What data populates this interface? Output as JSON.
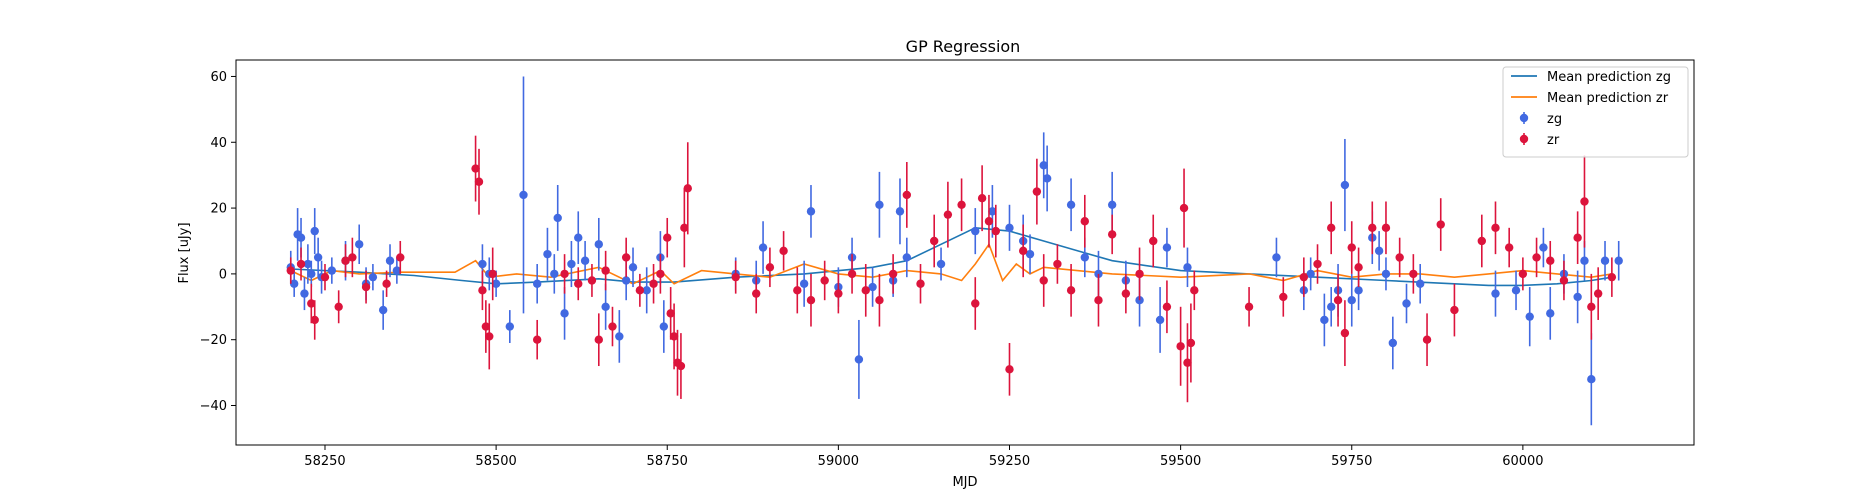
{
  "chart_data": {
    "type": "scatter",
    "title": "GP Regression",
    "xlabel": "MJD",
    "ylabel": "Flux [uJy]",
    "xlim": [
      58120,
      60250
    ],
    "ylim": [
      -52,
      65
    ],
    "xticks": [
      58250,
      58500,
      58750,
      59000,
      59250,
      59500,
      59750,
      60000
    ],
    "yticks": [
      -40,
      -20,
      0,
      20,
      40,
      60
    ],
    "legend_position": "top-right",
    "colors": {
      "zg": "#4169e1",
      "zr": "#dc143c",
      "mean_zg": "#1f77b4",
      "mean_zr": "#ff7f0e"
    },
    "mean_prediction": [
      {
        "name": "Mean prediction zg",
        "color": "#1f77b4",
        "x": [
          58200,
          58300,
          58380,
          58450,
          58500,
          58560,
          58650,
          58700,
          58760,
          58850,
          58950,
          59050,
          59100,
          59150,
          59200,
          59250,
          59300,
          59350,
          59400,
          59500,
          59600,
          59700,
          59800,
          59900,
          59950,
          60000,
          60050,
          60100,
          60130
        ],
        "y": [
          1.5,
          0.5,
          -0.5,
          -2,
          -3,
          -2.5,
          -1.5,
          -2.5,
          -2.5,
          -1,
          0,
          2,
          4,
          9,
          14,
          13,
          10,
          7,
          4,
          1,
          0,
          -1,
          -2,
          -3,
          -3.5,
          -3.5,
          -3,
          -2,
          -1
        ]
      },
      {
        "name": "Mean prediction zr",
        "color": "#ff7f0e",
        "x": [
          58200,
          58230,
          58260,
          58300,
          58360,
          58440,
          58470,
          58490,
          58530,
          58580,
          58650,
          58700,
          58740,
          58760,
          58800,
          58850,
          58900,
          58950,
          59000,
          59050,
          59100,
          59150,
          59180,
          59200,
          59220,
          59240,
          59260,
          59280,
          59300,
          59400,
          59500,
          59600,
          59650,
          59700,
          59750,
          59800,
          59850,
          59900,
          59950,
          60000,
          60050,
          60100,
          60130
        ],
        "y": [
          1,
          -2,
          1,
          0,
          0.5,
          0.5,
          4,
          -1,
          0,
          -1,
          2,
          -3,
          1,
          -3,
          1,
          0,
          -1,
          3,
          0,
          -1,
          1,
          0,
          -2,
          3,
          9,
          -2,
          3,
          0,
          2,
          0,
          -1,
          0,
          -2,
          1,
          -1,
          0,
          0,
          -1,
          0,
          1,
          0,
          -1,
          0
        ]
      }
    ],
    "series": [
      {
        "name": "zg",
        "color": "#4169e1",
        "points": [
          [
            58200,
            2,
            5
          ],
          [
            58205,
            -3,
            4
          ],
          [
            58210,
            12,
            8
          ],
          [
            58215,
            11,
            6
          ],
          [
            58220,
            -6,
            5
          ],
          [
            58225,
            3,
            6
          ],
          [
            58230,
            0,
            4
          ],
          [
            58235,
            13,
            7
          ],
          [
            58240,
            5,
            6
          ],
          [
            58245,
            -1,
            5
          ],
          [
            58260,
            1,
            4
          ],
          [
            58280,
            4,
            6
          ],
          [
            58300,
            9,
            6
          ],
          [
            58310,
            -3,
            5
          ],
          [
            58320,
            -1,
            4
          ],
          [
            58335,
            -11,
            6
          ],
          [
            58345,
            4,
            5
          ],
          [
            58355,
            1,
            4
          ],
          [
            58480,
            3,
            6
          ],
          [
            58490,
            0,
            5
          ],
          [
            58500,
            -3,
            4
          ],
          [
            58520,
            -16,
            5
          ],
          [
            58540,
            24,
            36
          ],
          [
            58560,
            -3,
            6
          ],
          [
            58575,
            6,
            8
          ],
          [
            58585,
            0,
            6
          ],
          [
            58590,
            17,
            10
          ],
          [
            58600,
            -12,
            8
          ],
          [
            58610,
            3,
            7
          ],
          [
            58620,
            11,
            8
          ],
          [
            58630,
            4,
            6
          ],
          [
            58650,
            9,
            8
          ],
          [
            58660,
            -10,
            7
          ],
          [
            58680,
            -19,
            8
          ],
          [
            58690,
            -2,
            6
          ],
          [
            58700,
            2,
            6
          ],
          [
            58720,
            -5,
            7
          ],
          [
            58740,
            5,
            8
          ],
          [
            58745,
            -16,
            8
          ],
          [
            58850,
            0,
            5
          ],
          [
            58880,
            -2,
            6
          ],
          [
            58890,
            8,
            8
          ],
          [
            58950,
            -3,
            7
          ],
          [
            58960,
            19,
            8
          ],
          [
            59000,
            -4,
            6
          ],
          [
            59020,
            5,
            6
          ],
          [
            59030,
            -26,
            12
          ],
          [
            59050,
            -4,
            6
          ],
          [
            59060,
            21,
            10
          ],
          [
            59080,
            -2,
            5
          ],
          [
            59090,
            19,
            10
          ],
          [
            59100,
            5,
            6
          ],
          [
            59150,
            3,
            5
          ],
          [
            59200,
            13,
            7
          ],
          [
            59225,
            19,
            8
          ],
          [
            59250,
            14,
            7
          ],
          [
            59270,
            10,
            8
          ],
          [
            59280,
            6,
            6
          ],
          [
            59300,
            33,
            10
          ],
          [
            59305,
            29,
            10
          ],
          [
            59340,
            21,
            8
          ],
          [
            59360,
            5,
            6
          ],
          [
            59380,
            0,
            7
          ],
          [
            59400,
            21,
            10
          ],
          [
            59420,
            -2,
            6
          ],
          [
            59440,
            -8,
            8
          ],
          [
            59470,
            -14,
            10
          ],
          [
            59480,
            8,
            6
          ],
          [
            59510,
            2,
            6
          ],
          [
            59640,
            5,
            6
          ],
          [
            59680,
            -5,
            6
          ],
          [
            59690,
            0,
            5
          ],
          [
            59710,
            -14,
            8
          ],
          [
            59720,
            -10,
            6
          ],
          [
            59730,
            -5,
            8
          ],
          [
            59740,
            27,
            14
          ],
          [
            59750,
            -8,
            8
          ],
          [
            59760,
            -5,
            6
          ],
          [
            59780,
            11,
            8
          ],
          [
            59790,
            7,
            6
          ],
          [
            59800,
            0,
            5
          ],
          [
            59810,
            -21,
            8
          ],
          [
            59830,
            -9,
            6
          ],
          [
            59850,
            -3,
            6
          ],
          [
            59960,
            -6,
            7
          ],
          [
            59990,
            -5,
            6
          ],
          [
            60010,
            -13,
            9
          ],
          [
            60030,
            8,
            6
          ],
          [
            60040,
            -12,
            8
          ],
          [
            60060,
            0,
            6
          ],
          [
            60080,
            -7,
            8
          ],
          [
            60090,
            4,
            6
          ],
          [
            60100,
            -32,
            14
          ],
          [
            60120,
            4,
            6
          ],
          [
            60140,
            4,
            6
          ]
        ]
      },
      {
        "name": "zr",
        "color": "#dc143c",
        "points": [
          [
            58200,
            1,
            4
          ],
          [
            58215,
            3,
            5
          ],
          [
            58230,
            -9,
            6
          ],
          [
            58235,
            -14,
            6
          ],
          [
            58250,
            -1,
            4
          ],
          [
            58270,
            -10,
            5
          ],
          [
            58280,
            4,
            5
          ],
          [
            58290,
            5,
            6
          ],
          [
            58310,
            -4,
            5
          ],
          [
            58340,
            -3,
            4
          ],
          [
            58360,
            5,
            5
          ],
          [
            58470,
            32,
            10
          ],
          [
            58475,
            28,
            10
          ],
          [
            58480,
            -5,
            6
          ],
          [
            58485,
            -16,
            8
          ],
          [
            58490,
            -19,
            10
          ],
          [
            58495,
            0,
            8
          ],
          [
            58560,
            -20,
            6
          ],
          [
            58600,
            0,
            6
          ],
          [
            58620,
            -3,
            5
          ],
          [
            58640,
            -2,
            5
          ],
          [
            58650,
            -20,
            8
          ],
          [
            58660,
            1,
            6
          ],
          [
            58670,
            -16,
            6
          ],
          [
            58690,
            5,
            6
          ],
          [
            58710,
            -5,
            5
          ],
          [
            58730,
            -3,
            6
          ],
          [
            58740,
            0,
            6
          ],
          [
            58750,
            11,
            6
          ],
          [
            58755,
            -12,
            8
          ],
          [
            58760,
            -19,
            10
          ],
          [
            58765,
            -27,
            10
          ],
          [
            58770,
            -28,
            10
          ],
          [
            58775,
            14,
            12
          ],
          [
            58780,
            26,
            14
          ],
          [
            58850,
            -1,
            5
          ],
          [
            58880,
            -6,
            6
          ],
          [
            58900,
            2,
            6
          ],
          [
            58920,
            7,
            6
          ],
          [
            58940,
            -5,
            7
          ],
          [
            58960,
            -8,
            8
          ],
          [
            58980,
            -2,
            6
          ],
          [
            59000,
            -6,
            6
          ],
          [
            59020,
            0,
            6
          ],
          [
            59040,
            -5,
            8
          ],
          [
            59060,
            -8,
            8
          ],
          [
            59080,
            0,
            6
          ],
          [
            59100,
            24,
            10
          ],
          [
            59120,
            -3,
            6
          ],
          [
            59140,
            10,
            8
          ],
          [
            59160,
            18,
            10
          ],
          [
            59180,
            21,
            8
          ],
          [
            59200,
            -9,
            8
          ],
          [
            59210,
            23,
            10
          ],
          [
            59220,
            16,
            8
          ],
          [
            59230,
            13,
            8
          ],
          [
            59250,
            -29,
            8
          ],
          [
            59270,
            7,
            8
          ],
          [
            59290,
            25,
            10
          ],
          [
            59300,
            -2,
            8
          ],
          [
            59320,
            3,
            6
          ],
          [
            59340,
            -5,
            8
          ],
          [
            59360,
            16,
            8
          ],
          [
            59380,
            -8,
            8
          ],
          [
            59400,
            12,
            6
          ],
          [
            59420,
            -6,
            6
          ],
          [
            59440,
            0,
            8
          ],
          [
            59460,
            10,
            8
          ],
          [
            59480,
            -10,
            8
          ],
          [
            59500,
            -22,
            12
          ],
          [
            59505,
            20,
            12
          ],
          [
            59510,
            -27,
            12
          ],
          [
            59515,
            -21,
            12
          ],
          [
            59520,
            -5,
            6
          ],
          [
            59600,
            -10,
            6
          ],
          [
            59650,
            -7,
            6
          ],
          [
            59680,
            -1,
            6
          ],
          [
            59700,
            3,
            6
          ],
          [
            59720,
            14,
            8
          ],
          [
            59730,
            -8,
            8
          ],
          [
            59740,
            -18,
            10
          ],
          [
            59750,
            8,
            8
          ],
          [
            59760,
            2,
            6
          ],
          [
            59780,
            14,
            8
          ],
          [
            59800,
            14,
            8
          ],
          [
            59820,
            5,
            6
          ],
          [
            59840,
            0,
            6
          ],
          [
            59860,
            -20,
            8
          ],
          [
            59880,
            15,
            8
          ],
          [
            59900,
            -11,
            8
          ],
          [
            59940,
            10,
            8
          ],
          [
            59960,
            14,
            8
          ],
          [
            59980,
            8,
            6
          ],
          [
            60000,
            0,
            5
          ],
          [
            60020,
            5,
            6
          ],
          [
            60040,
            4,
            6
          ],
          [
            60060,
            -2,
            6
          ],
          [
            60080,
            11,
            8
          ],
          [
            60090,
            22,
            14
          ],
          [
            60100,
            -10,
            10
          ],
          [
            60110,
            -6,
            8
          ],
          [
            60130,
            -1,
            6
          ]
        ]
      }
    ],
    "legend": [
      {
        "label": "Mean prediction zg",
        "kind": "line",
        "color": "#1f77b4"
      },
      {
        "label": "Mean prediction zr",
        "kind": "line",
        "color": "#ff7f0e"
      },
      {
        "label": "zg",
        "kind": "errorbar",
        "color": "#4169e1"
      },
      {
        "label": "zr",
        "kind": "errorbar",
        "color": "#dc143c"
      }
    ]
  }
}
